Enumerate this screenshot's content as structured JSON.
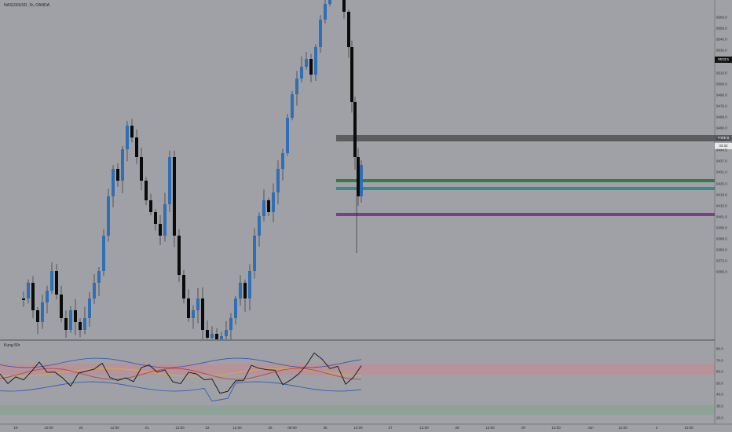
{
  "header": {
    "symbol_title": "NAS100USD, 1h, OANDA"
  },
  "indicator": {
    "title": "Kung 50r"
  },
  "colors": {
    "background": "#9fa1a6",
    "candle_up": "#2e6fb5",
    "candle_down": "#0b0b0b",
    "zone_dark": "#555559",
    "zone_green": "#3a7a45",
    "zone_teal": "#3c8a88",
    "zone_purple": "#7a3f86",
    "upper_band": "#c9878f",
    "lower_band": "#7fa58d",
    "rsi_line": "#111111",
    "blue_line": "#2b55b5",
    "red_line": "#cc3333",
    "yellow_line": "#d8b23a"
  },
  "price_axis": {
    "labels": [
      "9560.0",
      "9550.0",
      "9540.0",
      "9530.0",
      "9520.0",
      "9510.0",
      "9500.0",
      "9490.0",
      "9476.0",
      "9468.0",
      "9460.0",
      "9452.0",
      "9444.5",
      "9437.0",
      "9431.0",
      "9425.0",
      "9418.0",
      "9410.0",
      "9401.0",
      "9395.0",
      "9388.0",
      "9380.0",
      "9372.0",
      "9365.0"
    ],
    "current_price": "9533.5",
    "zone_price": "9485.9",
    "countdown": "33:32"
  },
  "indicator_axis": {
    "labels": [
      "80.0",
      "70.0",
      "60.0",
      "50.0",
      "40.0",
      "30.0",
      "20.0"
    ]
  },
  "time_axis": {
    "labels": [
      "19",
      "12:00",
      "20",
      "12:00",
      "21",
      "12:00",
      "22",
      "12:00",
      "25",
      "09:00",
      "26",
      "12:00",
      "27",
      "12:00",
      "28",
      "12:00",
      "29",
      "12:00",
      "Jun",
      "12:00",
      "2",
      "12:00"
    ]
  }
}
